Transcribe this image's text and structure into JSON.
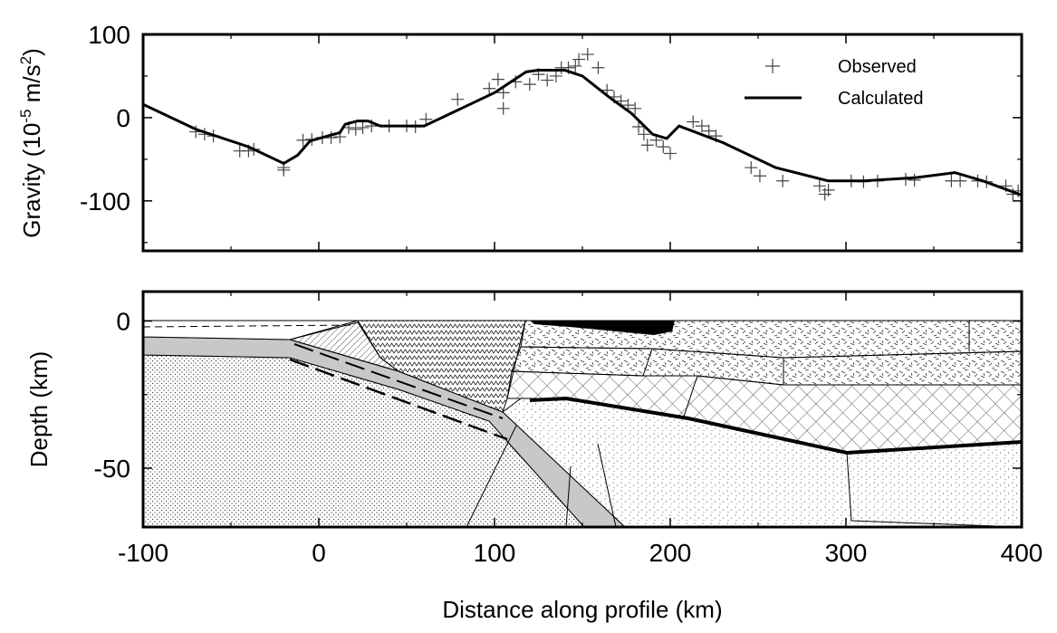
{
  "chart_data": [
    {
      "type": "line",
      "ylabel_parts": [
        "Gravity (10",
        "-5",
        " m/s",
        "2",
        ")"
      ],
      "xlim": [
        -100,
        400
      ],
      "ylim": [
        -160,
        100
      ],
      "yticks": [
        100,
        0,
        -100
      ],
      "yminorticks": [
        50,
        -50,
        -150
      ],
      "legend": "upper right",
      "series": [
        {
          "name": "Observed",
          "marker": "+",
          "color": "#444444",
          "x": [
            -70,
            -65,
            -60,
            -45,
            -40,
            -37,
            -20,
            -20,
            -9,
            -4,
            2,
            7,
            12,
            17,
            21,
            25,
            30,
            40,
            50,
            55,
            61,
            79,
            97,
            102,
            105,
            105,
            112,
            120,
            125,
            130,
            135,
            138,
            142,
            146,
            148,
            153,
            159,
            164,
            168,
            172,
            176,
            180,
            182,
            185,
            187,
            192,
            196,
            200,
            213,
            218,
            222,
            226,
            246,
            251,
            264,
            285,
            288,
            290,
            303,
            310,
            318,
            334,
            339,
            360,
            365,
            375,
            380,
            391,
            395,
            398
          ],
          "values": [
            -17,
            -20,
            -22,
            -40,
            -40,
            -38,
            -60,
            -63,
            -27,
            -26,
            -24,
            -24,
            -23,
            -12,
            -14,
            -12,
            -10,
            -10,
            -10,
            -11,
            -2,
            22,
            35,
            46,
            30,
            11,
            43,
            40,
            52,
            45,
            50,
            60,
            60,
            62,
            70,
            76,
            60,
            33,
            25,
            20,
            15,
            11,
            -11,
            -20,
            -33,
            -27,
            -35,
            -43,
            -5,
            -10,
            -16,
            -22,
            -60,
            -70,
            -76,
            -82,
            -92,
            -87,
            -76,
            -77,
            -76,
            -74,
            -75,
            -76,
            -76,
            -76,
            -77,
            -82,
            -92,
            -88
          ]
        },
        {
          "name": "Calculated",
          "marker": "line",
          "color": "#000000",
          "x": [
            -100,
            -70,
            -40,
            -20,
            -12,
            -5,
            5,
            12,
            15,
            22,
            28,
            35,
            60,
            80,
            100,
            118,
            125,
            140,
            150,
            165,
            178,
            190,
            198,
            205,
            210,
            230,
            260,
            290,
            310,
            340,
            362,
            378,
            400
          ],
          "values": [
            16,
            -14,
            -35,
            -55,
            -45,
            -28,
            -22,
            -18,
            -8,
            -4,
            -4,
            -10,
            -10,
            10,
            30,
            55,
            57,
            57,
            50,
            25,
            5,
            -20,
            -25,
            -10,
            -14,
            -30,
            -60,
            -76,
            -76,
            -72,
            -66,
            -76,
            -93
          ]
        }
      ]
    },
    {
      "type": "section",
      "xlabel": "Distance along profile (km)",
      "ylabel": "Depth (km)",
      "xlim": [
        -100,
        400
      ],
      "xticks": [
        -100,
        0,
        100,
        200,
        300,
        400
      ],
      "xminorticks": [
        -50,
        50,
        150,
        250,
        350
      ],
      "ylim": [
        -70,
        10
      ],
      "yticks": [
        0,
        -50
      ],
      "yminorticks": [
        -25
      ]
    }
  ]
}
